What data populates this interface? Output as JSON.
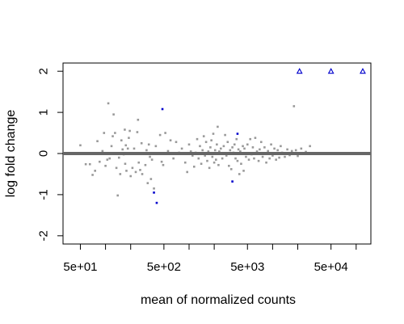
{
  "chart_data": {
    "type": "scatter",
    "title": "",
    "xlabel": "mean of normalized counts",
    "ylabel": "log fold change",
    "x_scale": "log10",
    "xlim": [
      31,
      150000
    ],
    "ylim": [
      -2.2,
      2.2
    ],
    "x_ticks": [
      50,
      500,
      5000,
      50000
    ],
    "x_tick_labels": [
      "5e+01",
      "5e+02",
      "5e+03",
      "5e+04"
    ],
    "x_minor_ticks": [
      100,
      200,
      1000,
      2000,
      10000,
      20000,
      100000
    ],
    "y_ticks": [
      -2,
      -1,
      0,
      1,
      2
    ],
    "y_tick_labels": [
      "-2",
      "-1",
      "0",
      "1",
      "2"
    ],
    "reference_line": {
      "y": 0,
      "color": "#666666"
    },
    "colors": {
      "points": "#999999",
      "significant": "#0000cc",
      "reference": "#666666"
    },
    "series": [
      {
        "name": "",
        "marker": "point",
        "color": "#999999",
        "points": [
          [
            50,
            0.2
          ],
          [
            58,
            -0.26
          ],
          [
            65,
            -0.26
          ],
          [
            70,
            -0.52
          ],
          [
            75,
            -0.42
          ],
          [
            80,
            0.3
          ],
          [
            85,
            -0.2
          ],
          [
            92,
            0.06
          ],
          [
            96,
            0.5
          ],
          [
            100,
            -0.3
          ],
          [
            105,
            -0.15
          ],
          [
            108,
            1.22
          ],
          [
            112,
            -0.12
          ],
          [
            118,
            0.18
          ],
          [
            122,
            0.42
          ],
          [
            125,
            0.95
          ],
          [
            130,
            0.5
          ],
          [
            135,
            -0.35
          ],
          [
            140,
            -1.02
          ],
          [
            145,
            -0.1
          ],
          [
            150,
            -0.5
          ],
          [
            155,
            0.32
          ],
          [
            160,
            0.1
          ],
          [
            165,
            -0.02
          ],
          [
            170,
            0.58
          ],
          [
            172,
            -0.25
          ],
          [
            175,
            0.2
          ],
          [
            178,
            -0.42
          ],
          [
            185,
            0.12
          ],
          [
            190,
            0.38
          ],
          [
            195,
            0.55
          ],
          [
            200,
            -0.55
          ],
          [
            210,
            -0.35
          ],
          [
            220,
            0.12
          ],
          [
            230,
            -0.45
          ],
          [
            240,
            0.52
          ],
          [
            245,
            0.82
          ],
          [
            250,
            -0.22
          ],
          [
            260,
            -0.4
          ],
          [
            270,
            0.25
          ],
          [
            275,
            -0.5
          ],
          [
            285,
            0.0
          ],
          [
            300,
            -0.28
          ],
          [
            310,
            0.08
          ],
          [
            320,
            -0.72
          ],
          [
            330,
            0.22
          ],
          [
            340,
            -0.08
          ],
          [
            350,
            -0.62
          ],
          [
            360,
            -0.15
          ],
          [
            380,
            -0.85
          ],
          [
            400,
            0.18
          ],
          [
            450,
            0.45
          ],
          [
            470,
            -0.2
          ],
          [
            490,
            -0.28
          ],
          [
            520,
            0.5
          ],
          [
            560,
            0.06
          ],
          [
            600,
            0.32
          ],
          [
            650,
            -0.12
          ],
          [
            700,
            0.28
          ],
          [
            760,
            0.02
          ],
          [
            820,
            0.12
          ],
          [
            900,
            -0.22
          ],
          [
            950,
            -0.45
          ],
          [
            1000,
            0.22
          ],
          [
            1050,
            0.05
          ],
          [
            1100,
            -0.05
          ],
          [
            1150,
            -0.32
          ],
          [
            1200,
            0.02
          ],
          [
            1250,
            0.35
          ],
          [
            1300,
            -0.12
          ],
          [
            1350,
            0.18
          ],
          [
            1400,
            -0.25
          ],
          [
            1450,
            0.08
          ],
          [
            1500,
            0.42
          ],
          [
            1550,
            -0.05
          ],
          [
            1600,
            0.28
          ],
          [
            1650,
            -0.18
          ],
          [
            1700,
            0.05
          ],
          [
            1750,
            -0.35
          ],
          [
            1800,
            0.15
          ],
          [
            1850,
            0.32
          ],
          [
            1900,
            -0.08
          ],
          [
            1950,
            0.48
          ],
          [
            2000,
            -0.22
          ],
          [
            2050,
            0.08
          ],
          [
            2100,
            -0.15
          ],
          [
            2150,
            0.22
          ],
          [
            2200,
            0.65
          ],
          [
            2250,
            -0.28
          ],
          [
            2300,
            0.05
          ],
          [
            2400,
            0.12
          ],
          [
            2500,
            -0.12
          ],
          [
            2600,
            0.18
          ],
          [
            2700,
            0.45
          ],
          [
            2800,
            -0.05
          ],
          [
            2900,
            0.28
          ],
          [
            3000,
            -0.3
          ],
          [
            3100,
            0.08
          ],
          [
            3200,
            -0.38
          ],
          [
            3300,
            0.15
          ],
          [
            3400,
            0.02
          ],
          [
            3500,
            0.22
          ],
          [
            3600,
            -0.12
          ],
          [
            3700,
            0.35
          ],
          [
            3800,
            -0.18
          ],
          [
            3900,
            0.1
          ],
          [
            4000,
            -0.5
          ],
          [
            4100,
            0.05
          ],
          [
            4200,
            -0.25
          ],
          [
            4400,
            0.18
          ],
          [
            4500,
            -0.42
          ],
          [
            4600,
            0.12
          ],
          [
            4800,
            -0.08
          ],
          [
            5000,
            0.22
          ],
          [
            5200,
            -0.15
          ],
          [
            5400,
            0.35
          ],
          [
            5600,
            -0.02
          ],
          [
            5800,
            0.15
          ],
          [
            6000,
            -0.12
          ],
          [
            6200,
            0.38
          ],
          [
            6500,
            0.05
          ],
          [
            6800,
            -0.18
          ],
          [
            7000,
            0.1
          ],
          [
            7300,
            0.28
          ],
          [
            7600,
            -0.08
          ],
          [
            8000,
            0.15
          ],
          [
            8400,
            -0.22
          ],
          [
            8800,
            0.06
          ],
          [
            9200,
            -0.12
          ],
          [
            9600,
            0.22
          ],
          [
            10000,
            -0.05
          ],
          [
            10500,
            0.12
          ],
          [
            11000,
            -0.15
          ],
          [
            11500,
            0.08
          ],
          [
            12000,
            -0.1
          ],
          [
            12500,
            0.18
          ],
          [
            13000,
            0.02
          ],
          [
            14000,
            -0.08
          ],
          [
            15000,
            0.1
          ],
          [
            16000,
            -0.04
          ],
          [
            17000,
            0.06
          ],
          [
            18000,
            1.15
          ],
          [
            19000,
            0.08
          ],
          [
            20000,
            -0.06
          ],
          [
            22000,
            0.12
          ],
          [
            25000,
            0.04
          ],
          [
            28000,
            0.18
          ]
        ]
      },
      {
        "name": "",
        "marker": "point",
        "color": "#0000cc",
        "points": [
          [
            480,
            1.08
          ],
          [
            380,
            -0.95
          ],
          [
            410,
            -1.2
          ],
          [
            3300,
            -0.68
          ],
          [
            3800,
            0.48
          ]
        ]
      },
      {
        "name": "",
        "marker": "triangle",
        "color": "#0000cc",
        "points": [
          [
            21000,
            2.0
          ],
          [
            50000,
            2.0
          ],
          [
            120000,
            2.0
          ]
        ]
      }
    ]
  }
}
